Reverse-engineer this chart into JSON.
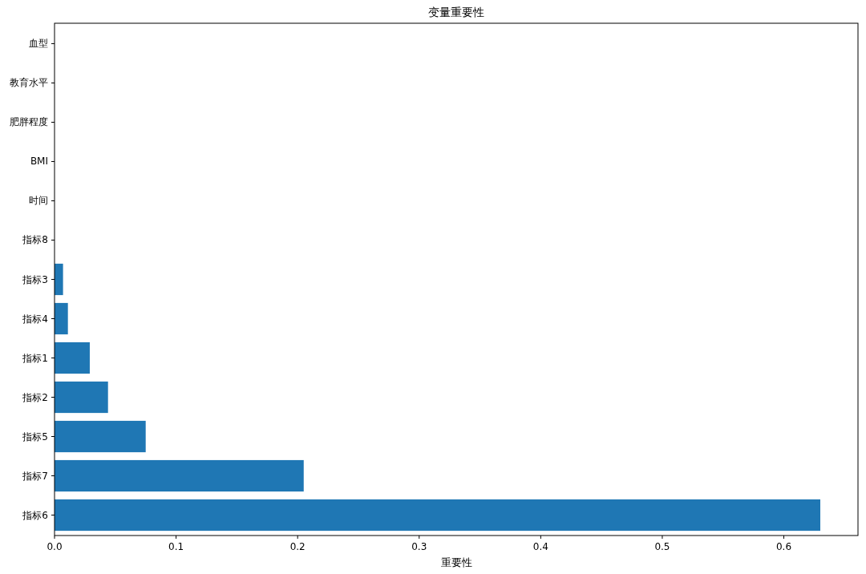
{
  "chart_data": {
    "type": "bar",
    "orientation": "horizontal",
    "title": "变量重要性",
    "xlabel": "重要性",
    "categories": [
      "血型",
      "教育水平",
      "肥胖程度",
      "BMI",
      "时间",
      "指标8",
      "指标3",
      "指标4",
      "指标1",
      "指标2",
      "指标5",
      "指标7",
      "指标6"
    ],
    "values": [
      0,
      0,
      0,
      0,
      0,
      0,
      0.007,
      0.011,
      0.029,
      0.044,
      0.075,
      0.205,
      0.63
    ],
    "color": "#1f77b4",
    "xlim": [
      0,
      0.661
    ],
    "xticks": [
      "0.0",
      0.1,
      0.2,
      0.3,
      0.4,
      0.5,
      0.6
    ]
  }
}
